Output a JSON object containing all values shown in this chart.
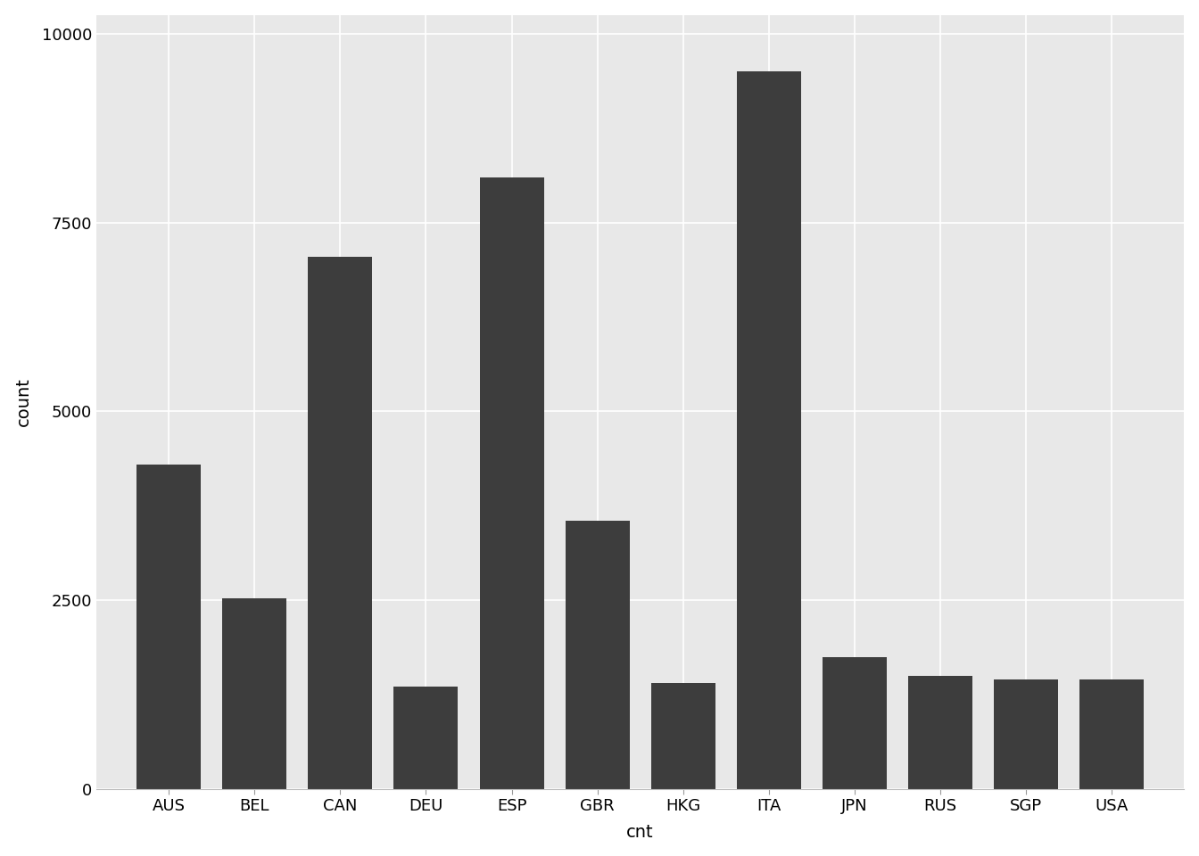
{
  "categories": [
    "AUS",
    "BEL",
    "CAN",
    "DEU",
    "ESP",
    "GBR",
    "HKG",
    "ITA",
    "JPN",
    "RUS",
    "SGP",
    "USA"
  ],
  "values": [
    4300,
    2520,
    7050,
    1350,
    8100,
    3550,
    1400,
    9500,
    1750,
    1500,
    1450,
    1450
  ],
  "bar_color": "#3d3d3d",
  "plot_bg_color": "#e8e8e8",
  "fig_bg_color": "#ffffff",
  "grid_color": "#ffffff",
  "xlabel": "cnt",
  "ylabel": "count",
  "ylim": [
    0,
    10250
  ],
  "yticks": [
    0,
    2500,
    5000,
    7500,
    10000
  ],
  "ytick_labels": [
    "0",
    "2500",
    "5000",
    "7500",
    "10000"
  ],
  "label_fontsize": 14,
  "tick_fontsize": 13,
  "bar_width": 0.75
}
